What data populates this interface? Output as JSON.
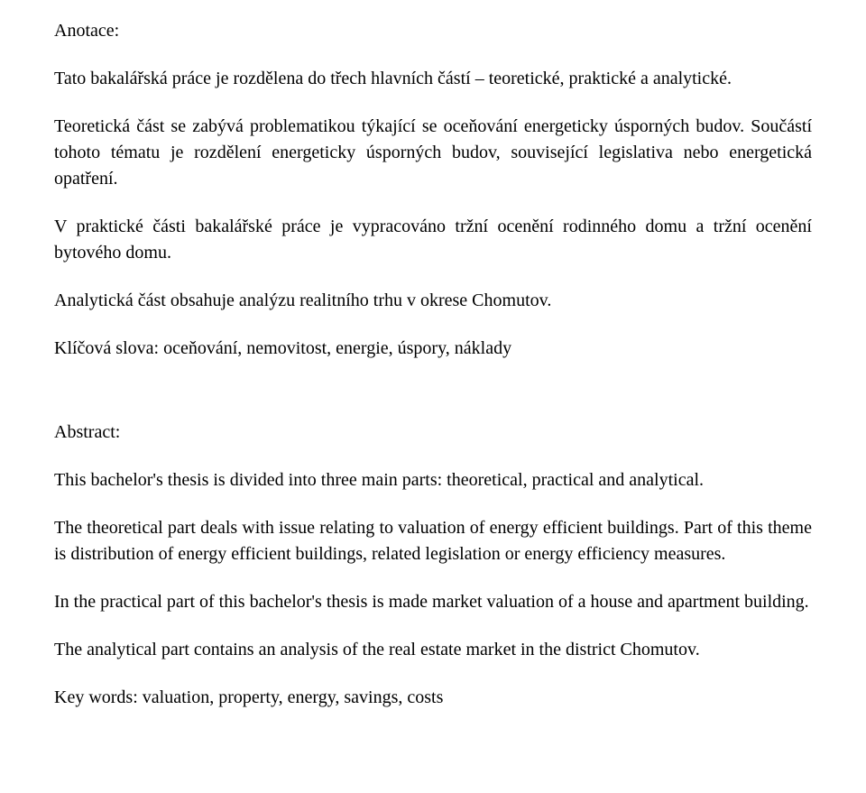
{
  "doc": {
    "anotace_heading": "Anotace:",
    "p1": "Tato bakalářská práce je rozdělena do třech hlavních částí – teoretické, praktické a analytické.",
    "p2": "Teoretická část se zabývá problematikou týkající se oceňování energeticky úsporných budov. Součástí tohoto tématu je rozdělení energeticky úsporných budov, související legislativa nebo energetická opatření.",
    "p3": "V praktické části bakalářské práce je vypracováno tržní ocenění rodinného domu a tržní ocenění bytového domu.",
    "p4": "Analytická část obsahuje analýzu realitního trhu v okrese Chomutov.",
    "p5": "Klíčová slova: oceňování, nemovitost, energie, úspory, náklady",
    "abstract_heading": "Abstract:",
    "p6": "This bachelor's thesis is divided into three main parts: theoretical, practical and analytical.",
    "p7": "The theoretical part deals with issue relating to valuation of energy efficient buildings. Part of this theme is distribution of energy efficient buildings, related legislation or energy efficiency measures.",
    "p8": "In the practical part of this bachelor's thesis is made market valuation of a house and apartment building.",
    "p9": "The analytical part contains an analysis of the real estate market in the district Chomutov.",
    "p10": "Key words: valuation, property, energy, savings, costs"
  }
}
